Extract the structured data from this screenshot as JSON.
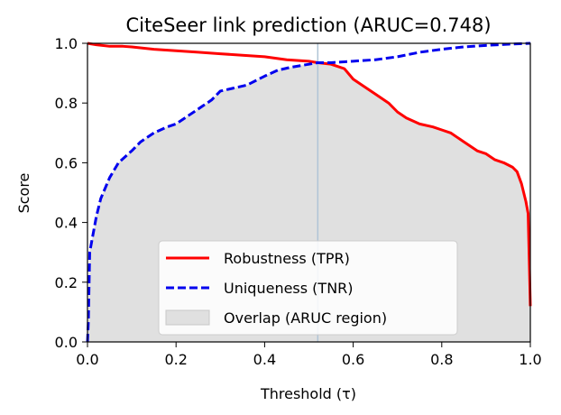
{
  "chart_data": {
    "type": "line",
    "title": "CiteSeer link prediction (ARUC=0.748)",
    "xlabel": "Threshold (τ)",
    "ylabel": "Score",
    "xlim": [
      0,
      1
    ],
    "ylim": [
      0,
      1
    ],
    "xticks": [
      "0.0",
      "0.2",
      "0.4",
      "0.6",
      "0.8",
      "1.0"
    ],
    "yticks": [
      "0.0",
      "0.2",
      "0.4",
      "0.6",
      "0.8",
      "1.0"
    ],
    "grid": false,
    "legend_position": "lower-center",
    "vertical_marker": {
      "x": 0.52,
      "color": "#b0c4d6"
    },
    "overlap_region": {
      "name": "Overlap (ARUC region)",
      "color": "#e0e0e0"
    },
    "series": [
      {
        "name": "Robustness (TPR)",
        "color": "#ff0000",
        "style": "solid",
        "x": [
          0.0,
          0.02,
          0.05,
          0.08,
          0.1,
          0.15,
          0.2,
          0.25,
          0.3,
          0.35,
          0.4,
          0.45,
          0.5,
          0.52,
          0.55,
          0.58,
          0.6,
          0.62,
          0.65,
          0.68,
          0.7,
          0.72,
          0.75,
          0.78,
          0.8,
          0.82,
          0.85,
          0.88,
          0.9,
          0.92,
          0.94,
          0.96,
          0.97,
          0.98,
          0.99,
          0.995,
          1.0
        ],
        "y": [
          1.0,
          0.995,
          0.99,
          0.99,
          0.988,
          0.98,
          0.975,
          0.97,
          0.965,
          0.96,
          0.955,
          0.945,
          0.94,
          0.935,
          0.93,
          0.915,
          0.88,
          0.86,
          0.83,
          0.8,
          0.77,
          0.75,
          0.73,
          0.72,
          0.71,
          0.7,
          0.67,
          0.64,
          0.63,
          0.61,
          0.6,
          0.585,
          0.57,
          0.53,
          0.47,
          0.43,
          0.12
        ]
      },
      {
        "name": "Uniqueness (TNR)",
        "color": "#0000ee",
        "style": "dashed",
        "x": [
          0.0,
          0.002,
          0.005,
          0.01,
          0.02,
          0.03,
          0.05,
          0.07,
          0.1,
          0.12,
          0.15,
          0.18,
          0.2,
          0.23,
          0.26,
          0.28,
          0.3,
          0.33,
          0.36,
          0.4,
          0.43,
          0.46,
          0.5,
          0.52,
          0.55,
          0.6,
          0.65,
          0.7,
          0.75,
          0.8,
          0.85,
          0.9,
          0.95,
          1.0
        ],
        "y": [
          0.0,
          0.07,
          0.3,
          0.34,
          0.42,
          0.48,
          0.55,
          0.6,
          0.64,
          0.67,
          0.7,
          0.72,
          0.73,
          0.76,
          0.79,
          0.81,
          0.84,
          0.85,
          0.86,
          0.89,
          0.91,
          0.92,
          0.93,
          0.935,
          0.935,
          0.94,
          0.945,
          0.955,
          0.97,
          0.98,
          0.988,
          0.993,
          0.997,
          1.0
        ]
      }
    ]
  }
}
